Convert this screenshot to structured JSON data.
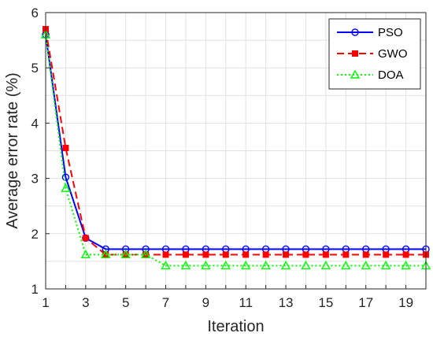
{
  "chart_data": {
    "type": "line",
    "title": "",
    "xlabel": "Iteration",
    "ylabel": "Average error rate (%)",
    "xlim": [
      1,
      20
    ],
    "ylim": [
      1,
      6
    ],
    "xticks": [
      1,
      3,
      5,
      7,
      9,
      11,
      13,
      15,
      17,
      19
    ],
    "yticks": [
      1,
      2,
      3,
      4,
      5,
      6
    ],
    "grid": true,
    "legend_position": "top-right",
    "x": [
      1,
      2,
      3,
      4,
      5,
      6,
      7,
      8,
      9,
      10,
      11,
      12,
      13,
      14,
      15,
      16,
      17,
      18,
      19,
      20
    ],
    "series": [
      {
        "name": "PSO",
        "color": "#0000ff",
        "line_style": "solid",
        "marker": "circle",
        "values": [
          5.6,
          3.02,
          1.92,
          1.72,
          1.72,
          1.72,
          1.72,
          1.72,
          1.72,
          1.72,
          1.72,
          1.72,
          1.72,
          1.72,
          1.72,
          1.72,
          1.72,
          1.72,
          1.72,
          1.72
        ]
      },
      {
        "name": "GWO",
        "color": "#ff0000",
        "line_style": "dashed",
        "marker": "square",
        "values": [
          5.7,
          3.55,
          1.92,
          1.62,
          1.62,
          1.62,
          1.62,
          1.62,
          1.62,
          1.62,
          1.62,
          1.62,
          1.62,
          1.62,
          1.62,
          1.62,
          1.62,
          1.62,
          1.62,
          1.62
        ]
      },
      {
        "name": "DOA",
        "color": "#00ff00",
        "line_style": "dotted",
        "marker": "triangle",
        "values": [
          5.6,
          2.82,
          1.62,
          1.62,
          1.62,
          1.62,
          1.42,
          1.42,
          1.42,
          1.42,
          1.42,
          1.42,
          1.42,
          1.42,
          1.42,
          1.42,
          1.42,
          1.42,
          1.42,
          1.42
        ]
      }
    ]
  }
}
